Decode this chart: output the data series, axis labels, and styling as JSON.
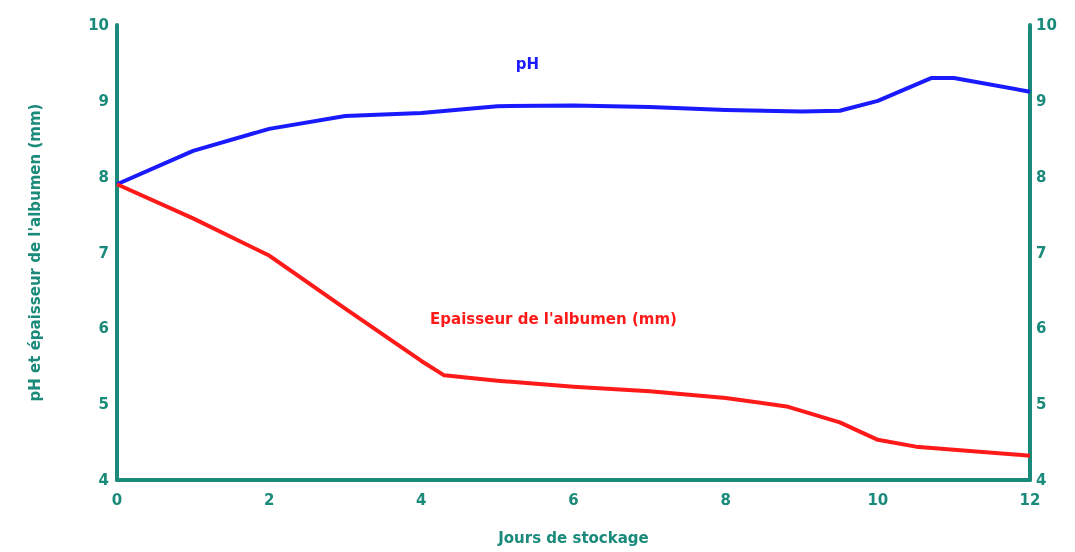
{
  "chart_data": {
    "type": "line",
    "xlabel": "Jours de stockage",
    "ylabel": "pH et épaisseur de l'albumen (mm)",
    "xlim": [
      0,
      12
    ],
    "xticks": [
      0,
      2,
      4,
      6,
      8,
      10,
      12
    ],
    "ylim": [
      4,
      10
    ],
    "yticks": [
      4,
      5,
      6,
      7,
      8,
      9,
      10
    ],
    "y2lim": [
      4,
      10
    ],
    "y2ticks": [
      4,
      5,
      6,
      7,
      8,
      9,
      10
    ],
    "grid": false,
    "legend": false,
    "marker": "none",
    "line_style": "solid",
    "series": [
      {
        "name": "pH",
        "color": "#1a1aff",
        "x": [
          0,
          1,
          2,
          3,
          4,
          5,
          6,
          7,
          8,
          9,
          9.5,
          10,
          10.7,
          11,
          12
        ],
        "values": [
          7.9,
          8.34,
          8.63,
          8.8,
          8.84,
          8.93,
          8.94,
          8.92,
          8.88,
          8.86,
          8.87,
          9.0,
          9.3,
          9.3,
          9.12
        ]
      },
      {
        "name": "Epaisseur de l'albumen (mm)",
        "color": "#ff1a1a",
        "x": [
          0,
          1,
          2,
          3,
          4,
          4.3,
          5,
          6,
          7,
          8,
          8.8,
          9.5,
          10,
          10.5,
          11,
          12
        ],
        "values": [
          7.9,
          7.45,
          6.96,
          6.26,
          5.57,
          5.38,
          5.31,
          5.23,
          5.17,
          5.08,
          4.97,
          4.76,
          4.53,
          4.44,
          4.4,
          4.32
        ]
      }
    ]
  }
}
